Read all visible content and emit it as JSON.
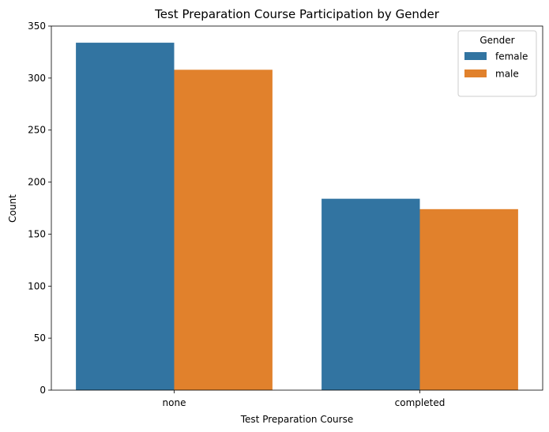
{
  "chart_data": {
    "type": "bar",
    "title": "Test Preparation Course Participation by Gender",
    "xlabel": "Test Preparation Course",
    "ylabel": "Count",
    "categories": [
      "none",
      "completed"
    ],
    "series": [
      {
        "name": "female",
        "color": "#3274a1",
        "values": [
          334,
          184
        ]
      },
      {
        "name": "male",
        "color": "#e1812c",
        "values": [
          308,
          174
        ]
      }
    ],
    "ylim": [
      0,
      350
    ],
    "yticks": [
      0,
      50,
      100,
      150,
      200,
      250,
      300,
      350
    ],
    "grid": false,
    "legend": {
      "title": "Gender",
      "placement": "top-right"
    }
  }
}
